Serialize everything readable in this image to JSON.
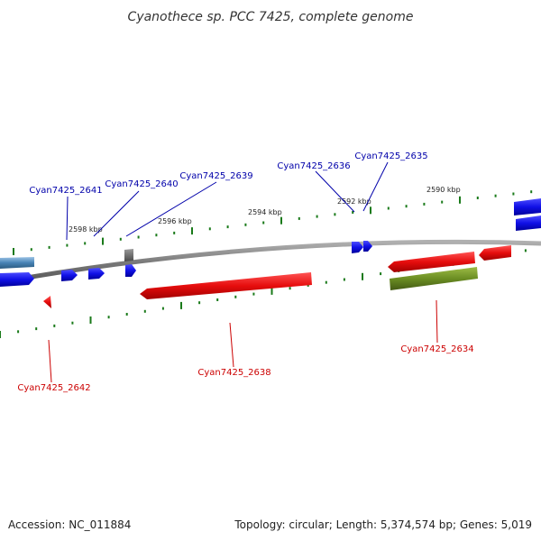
{
  "title": "Cyanothece sp. PCC 7425, complete genome",
  "footer": {
    "accession": "Accession: NC_011884",
    "summary": "Topology: circular; Length: 5,374,574 bp; Genes: 5,019"
  },
  "ticks": [
    "2598 kbp",
    "2596 kbp",
    "2594 kbp",
    "2592 kbp",
    "2590 kbp"
  ],
  "labels": {
    "forward": [
      "Cyan7425_2641",
      "Cyan7425_2640",
      "Cyan7425_2639",
      "Cyan7425_2636",
      "Cyan7425_2635"
    ],
    "reverse": [
      "Cyan7425_2642",
      "Cyan7425_2638",
      "Cyan7425_2634"
    ]
  },
  "colors": {
    "forward_gene": "#1010e6",
    "reverse_gene": "#e60d0d",
    "rna_gene": "#6b8e23",
    "pseudo_gene": "#707070",
    "other_feature": "#4682b4",
    "tick": "#1a7a1a",
    "backbone": "#808080",
    "forward_label": "#0000aa",
    "reverse_label": "#cc0000"
  }
}
